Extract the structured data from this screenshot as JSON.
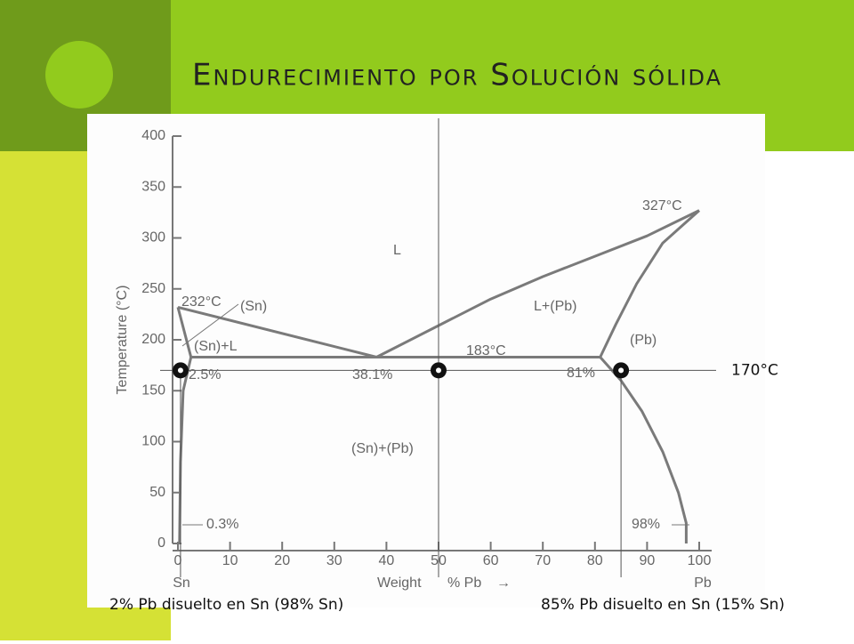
{
  "slide_title": "Endurecimiento por Solución sólida",
  "chart_data": {
    "type": "line",
    "x_label": "Weight",
    "x_label_unit": "% Pb",
    "x_label_arrow": "→",
    "y_label": "Temperature (°C)",
    "x_end_labels": [
      "Sn",
      "Pb"
    ],
    "xlim": [
      0,
      100
    ],
    "ylim": [
      0,
      400
    ],
    "xticks": [
      0,
      10,
      20,
      30,
      40,
      50,
      60,
      70,
      80,
      90,
      100
    ],
    "yticks": [
      0,
      50,
      100,
      150,
      200,
      250,
      300,
      350,
      400
    ],
    "series": [
      {
        "color": "#7a7a7a",
        "x": [
          0,
          38.1
        ],
        "values": [
          232,
          183
        ]
      },
      {
        "color": "#7a7a7a",
        "x": [
          38.1,
          50,
          60,
          70,
          80,
          90,
          100
        ],
        "values": [
          183,
          214,
          240,
          262,
          282,
          302,
          327
        ]
      },
      {
        "color": "#7a7a7a",
        "x": [
          81,
          84,
          88,
          93,
          100
        ],
        "values": [
          183,
          215,
          255,
          295,
          327
        ]
      },
      {
        "color": "#7a7a7a",
        "x": [
          81,
          85,
          89,
          93,
          96,
          97.5,
          97.5
        ],
        "values": [
          183,
          160,
          130,
          90,
          50,
          20,
          0
        ]
      },
      {
        "color": "#7a7a7a",
        "x": [
          2.5,
          81
        ],
        "values": [
          183,
          183
        ]
      },
      {
        "color": "#7a7a7a",
        "x": [
          0,
          2.5
        ],
        "values": [
          232,
          183
        ]
      },
      {
        "color": "#7a7a7a",
        "x": [
          2.5,
          1,
          0.5,
          0.3
        ],
        "values": [
          183,
          150,
          80,
          0
        ]
      }
    ],
    "points": {
      "color": "#111111",
      "x": [
        0.5,
        50,
        85
      ],
      "values": [
        170,
        170,
        170
      ],
      "label": "170°C"
    },
    "region_labels": [
      "L",
      "L+(Pb)",
      "(Sn)+L",
      "(Sn)",
      "(Pb)",
      "(Sn)+(Pb)"
    ],
    "annotations": [
      "232°C",
      "327°C",
      "183°C",
      "2.5%",
      "38.1%",
      "81%",
      "0.3%",
      "98%"
    ]
  },
  "captions": [
    "2% Pb disuelto en Sn (98% Sn)",
    "85% Pb disuelto en Sn (15% Sn)"
  ]
}
